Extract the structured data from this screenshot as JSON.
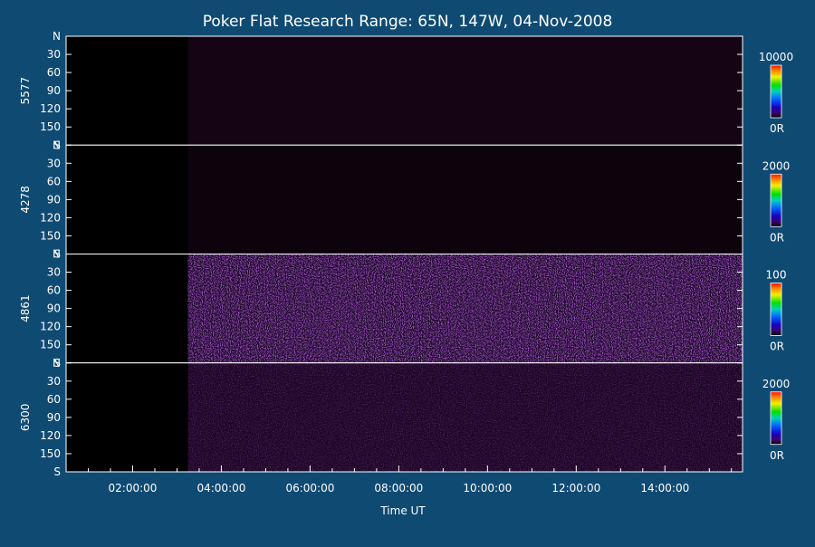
{
  "chart_data": {
    "type": "heatmap",
    "title": "Poker Flat Research Range: 65N, 147W, 04-Nov-2008",
    "xlabel": "Time UT",
    "xlim": [
      "00:30:00",
      "15:45:00"
    ],
    "x_ticks": [
      "02:00:00",
      "04:00:00",
      "06:00:00",
      "08:00:00",
      "10:00:00",
      "12:00:00",
      "14:00:00"
    ],
    "y_ticks": [
      "N",
      "30",
      "60",
      "90",
      "120",
      "150",
      "S"
    ],
    "data_start": "03:15:00",
    "panels": [
      {
        "label": "5577",
        "cbar_max": "10000",
        "cbar_min": "0R",
        "base_color": "#140414",
        "texture": 0.06,
        "brightness": 0.1
      },
      {
        "label": "4278",
        "cbar_max": "2000",
        "cbar_min": "0R",
        "base_color": "#0d030d",
        "texture": 0.08,
        "brightness": 0.06
      },
      {
        "label": "4861",
        "cbar_max": "100",
        "cbar_min": "0R",
        "base_color": "#10041a",
        "texture": 0.95,
        "brightness": 0.55
      },
      {
        "label": "6300",
        "cbar_max": "2000",
        "cbar_min": "0R",
        "base_color": "#1e0726",
        "texture": 0.5,
        "brightness": 0.35
      }
    ],
    "colors": {
      "background": "#0f4a73",
      "plot": "#000000",
      "foreground": "#ffffff"
    }
  }
}
